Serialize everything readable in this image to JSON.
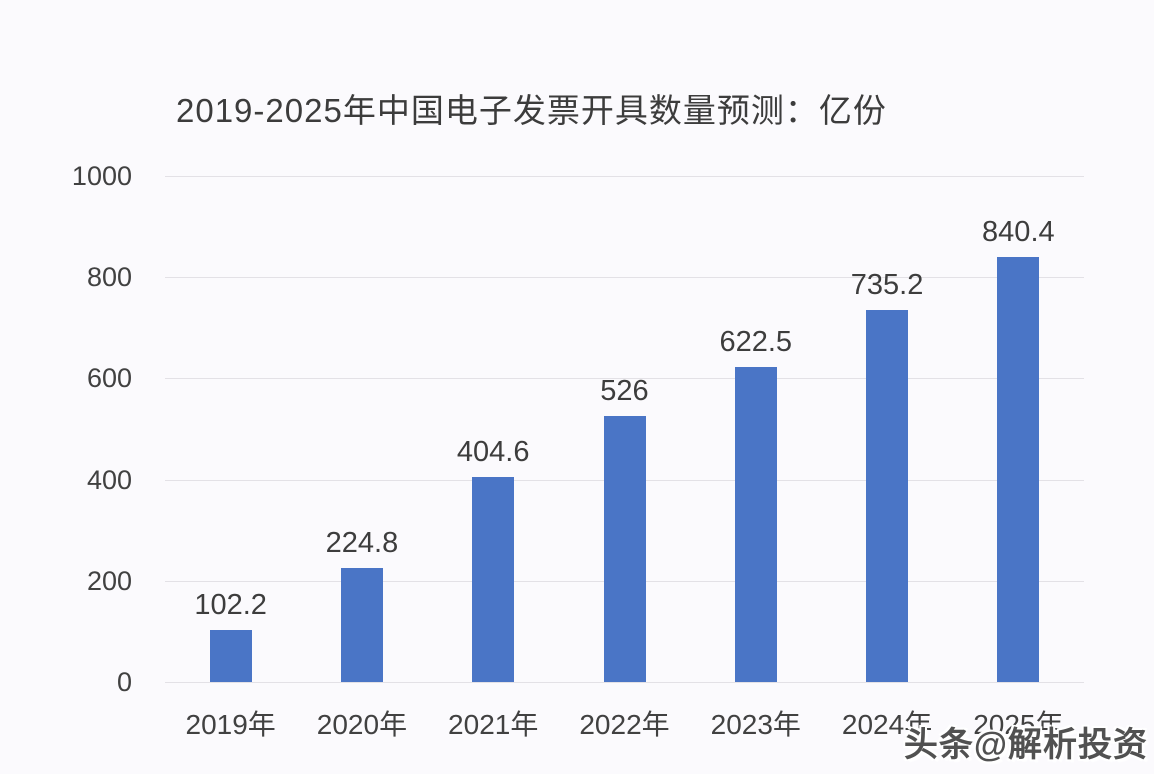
{
  "page": {
    "background": "#fbfafd"
  },
  "chart_data": {
    "type": "bar",
    "title": "2019-2025年中国电子发票开具数量预测：亿份",
    "categories": [
      "2019年",
      "2020年",
      "2021年",
      "2022年",
      "2023年",
      "2024年",
      "2025年"
    ],
    "values": [
      102.2,
      224.8,
      404.6,
      526,
      622.5,
      735.2,
      840.4
    ],
    "xlabel": "",
    "ylabel": "",
    "ylim": [
      0,
      1000
    ],
    "yticks": [
      0,
      200,
      400,
      600,
      800,
      1000
    ],
    "grid": "horizontal",
    "legend": "none",
    "bar_color": "#4a75c6",
    "gridline_color": "#e3e1e6",
    "text_color": "#3d3d3d"
  },
  "watermark": {
    "text": "头条@解析投资"
  }
}
